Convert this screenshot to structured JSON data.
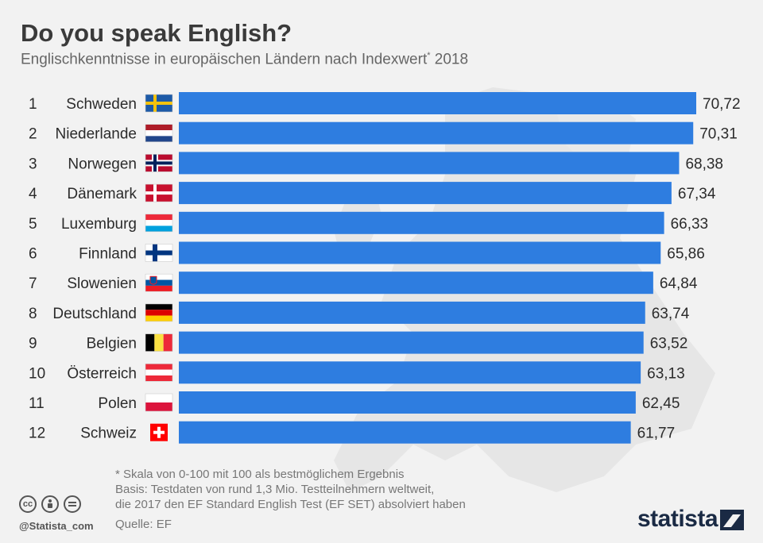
{
  "header": {
    "title": "Do you speak English?",
    "subtitle": "Englischkenntnisse in europäischen Ländern nach Indexwert",
    "subtitle_mark": "*",
    "subtitle_year": " 2018"
  },
  "chart_data": {
    "type": "bar",
    "orientation": "horizontal",
    "title": "Do you speak English?",
    "subtitle": "Englischkenntnisse in europäischen Ländern nach Indexwert* 2018",
    "xlim": [
      0,
      100
    ],
    "grid": false,
    "legend": "none",
    "bar_color": "#2e7de0",
    "categories": [
      "Schweden",
      "Niederlande",
      "Norwegen",
      "Dänemark",
      "Luxemburg",
      "Finnland",
      "Slowenien",
      "Deutschland",
      "Belgien",
      "Österreich",
      "Polen",
      "Schweiz"
    ],
    "ranks": [
      "1",
      "2",
      "3",
      "4",
      "5",
      "6",
      "7",
      "8",
      "9",
      "10",
      "11",
      "12"
    ],
    "values": [
      70.72,
      70.31,
      68.38,
      67.34,
      66.33,
      65.86,
      64.84,
      63.74,
      63.52,
      63.13,
      62.45,
      61.77
    ],
    "value_labels": [
      "70,72",
      "70,31",
      "68,38",
      "67,34",
      "66,33",
      "65,86",
      "64,84",
      "63,74",
      "63,52",
      "63,13",
      "62,45",
      "61,77"
    ],
    "flag_icons": [
      "flag-sweden-icon",
      "flag-netherlands-icon",
      "flag-norway-icon",
      "flag-denmark-icon",
      "flag-luxembourg-icon",
      "flag-finland-icon",
      "flag-slovenia-icon",
      "flag-germany-icon",
      "flag-belgium-icon",
      "flag-austria-icon",
      "flag-poland-icon",
      "flag-switzerland-icon"
    ]
  },
  "footer": {
    "notes": [
      "* Skala von 0-100 mit 100 als bestmöglichem Ergebnis",
      "Basis: Testdaten von rund 1,3 Mio. Testteilnehmern weltweit,",
      "die 2017 den EF Standard English Test (EF SET) absolviert haben"
    ],
    "source": "Quelle: EF",
    "handle": "@Statista_com",
    "brand": "statista",
    "license_icons": [
      "cc-icon",
      "attribution-icon",
      "no-derivatives-icon"
    ]
  }
}
